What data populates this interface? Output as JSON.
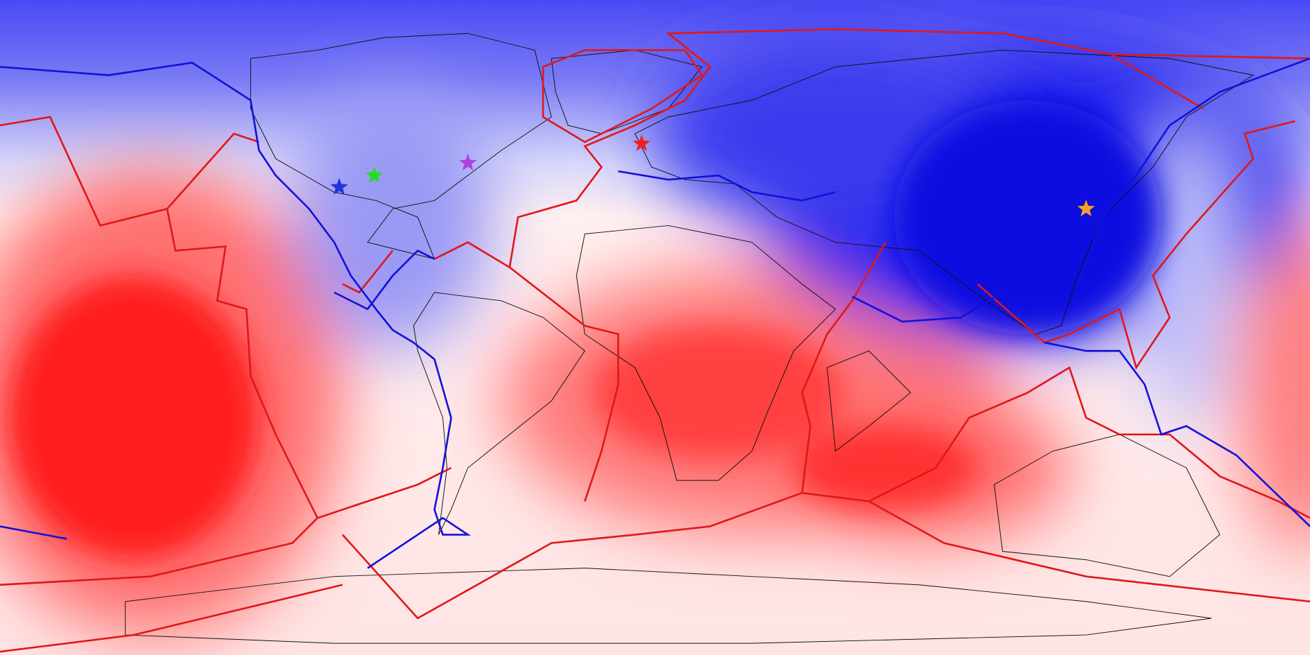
{
  "markers": [
    {
      "color": "#2233dd"
    },
    {
      "color": "#22dd22"
    },
    {
      "color": "#aa44dd"
    },
    {
      "color": "#ee2222"
    },
    {
      "color": "#f5a020"
    }
  ]
}
